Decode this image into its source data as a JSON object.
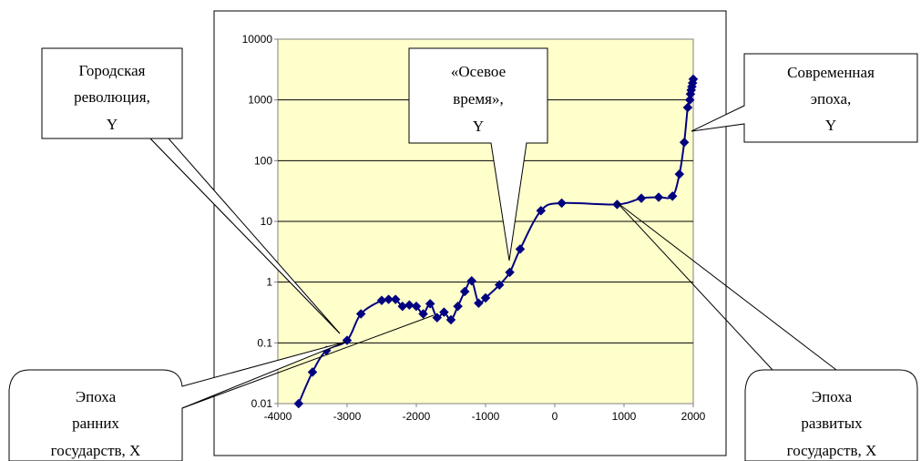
{
  "chart_data": {
    "type": "line",
    "title": "",
    "xlabel": "",
    "ylabel": "",
    "y_scale": "log",
    "xlim": [
      -4000,
      2000
    ],
    "ylim": [
      0.01,
      10000
    ],
    "grid": {
      "horizontal": true,
      "vertical": false
    },
    "plot_background": "#ffffcc",
    "series_color": "#000080",
    "x_tick_labels": [
      "-4000",
      "-3000",
      "-2000",
      "-1000",
      "0",
      "1000",
      "2000"
    ],
    "y_tick_labels": [
      "0.01",
      "0.1",
      "1",
      "10",
      "100",
      "1000",
      "10000"
    ],
    "series": [
      {
        "x": [
          -3700,
          -3500,
          -3300,
          -3000,
          -2800,
          -2500,
          -2400,
          -2300,
          -2200,
          -2100,
          -2000,
          -1900,
          -1800,
          -1700,
          -1600,
          -1500,
          -1400,
          -1300,
          -1200,
          -1100,
          -1000,
          -800,
          -650,
          -500,
          -200,
          100,
          900,
          1250,
          1500,
          1700,
          1800,
          1870,
          1920,
          1950,
          1960,
          1970,
          1980,
          1990,
          2000
        ],
        "y": [
          0.01,
          0.033,
          0.075,
          0.11,
          0.3,
          0.5,
          0.52,
          0.52,
          0.4,
          0.42,
          0.4,
          0.3,
          0.44,
          0.26,
          0.32,
          0.24,
          0.4,
          0.7,
          1.05,
          0.45,
          0.55,
          0.9,
          1.45,
          3.5,
          15,
          20,
          19,
          24,
          25,
          26,
          60,
          200,
          750,
          1000,
          1250,
          1450,
          1650,
          1900,
          2200
        ]
      }
    ]
  },
  "callouts": [
    {
      "id": "urban-revolution",
      "lines": [
        "Городская",
        "революция,",
        "Y"
      ]
    },
    {
      "id": "axial-age",
      "lines": [
        "«Осевое",
        "время»,",
        "Y"
      ]
    },
    {
      "id": "modern-era",
      "lines": [
        "Современная",
        "эпоха,",
        "Y"
      ]
    },
    {
      "id": "early-states",
      "lines": [
        "Эпоха",
        "ранних",
        "государств, X"
      ]
    },
    {
      "id": "developed-states",
      "lines": [
        "Эпоха",
        "развитых",
        "государств, X"
      ]
    }
  ]
}
